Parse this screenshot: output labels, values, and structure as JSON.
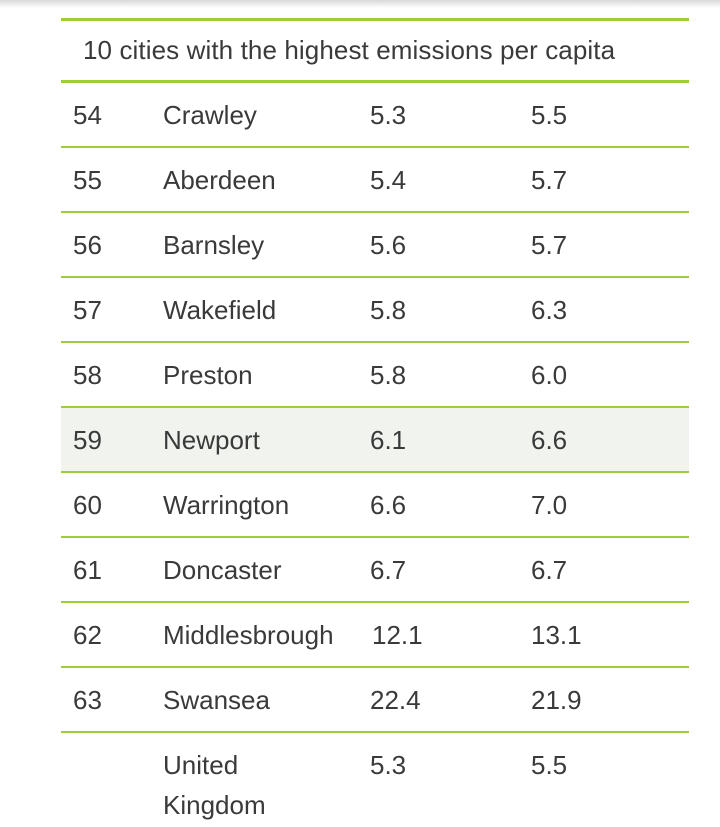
{
  "table": {
    "title": "10 cities with the highest emissions per capita",
    "rows": [
      {
        "rank": "54",
        "city": "Crawley",
        "v1": "5.3",
        "v2": "5.5"
      },
      {
        "rank": "55",
        "city": "Aberdeen",
        "v1": "5.4",
        "v2": "5.7"
      },
      {
        "rank": "56",
        "city": "Barnsley",
        "v1": "5.6",
        "v2": "5.7"
      },
      {
        "rank": "57",
        "city": "Wakefield",
        "v1": "5.8",
        "v2": "6.3"
      },
      {
        "rank": "58",
        "city": "Preston",
        "v1": "5.8",
        "v2": "6.0"
      },
      {
        "rank": "59",
        "city": "Newport",
        "v1": "6.1",
        "v2": "6.6"
      },
      {
        "rank": "60",
        "city": "Warrington",
        "v1": "6.6",
        "v2": "7.0"
      },
      {
        "rank": "61",
        "city": "Doncaster",
        "v1": "6.7",
        "v2": "6.7"
      },
      {
        "rank": "62",
        "city": "Middlesbrough",
        "v1": "12.1",
        "v2": "13.1"
      },
      {
        "rank": "63",
        "city": "Swansea",
        "v1": "22.4",
        "v2": "21.9"
      }
    ],
    "total": {
      "rank": "",
      "city": "United Kingdom",
      "v1": "5.3",
      "v2": "5.5"
    },
    "colors": {
      "accent_line": "#9dcd3a",
      "highlight_row": "#f0f3ee",
      "text": "#3a3a3a"
    }
  }
}
